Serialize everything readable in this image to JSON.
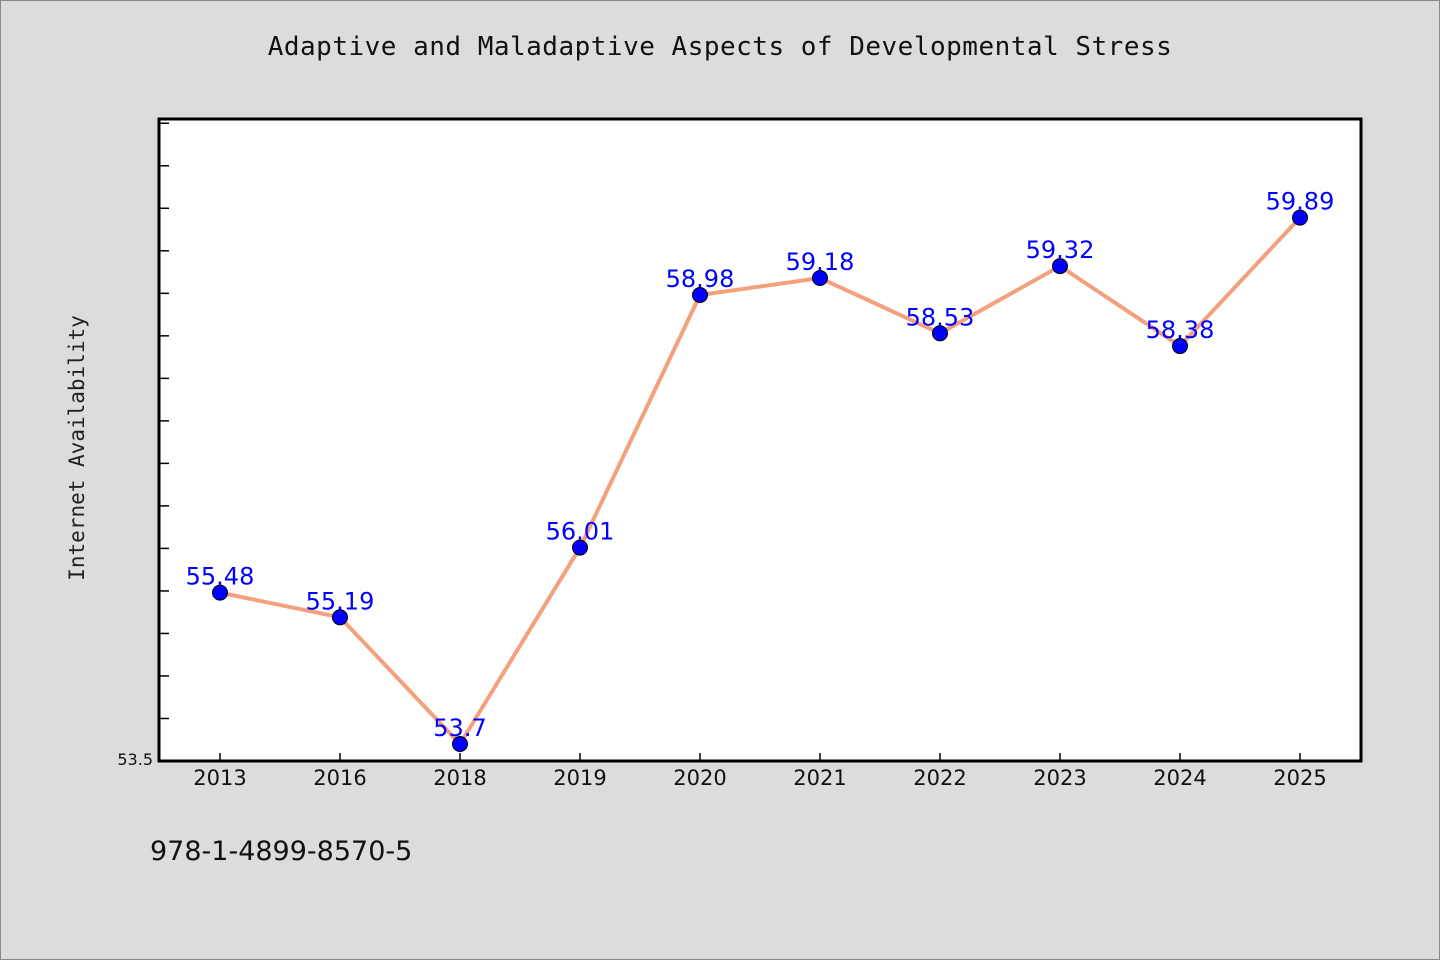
{
  "chart_data": {
    "type": "line",
    "title": "Adaptive and Maladaptive Aspects of Developmental Stress",
    "xlabel": "",
    "ylabel": "Internet Availability",
    "categories": [
      "2013",
      "2016",
      "2018",
      "2019",
      "2020",
      "2021",
      "2022",
      "2023",
      "2024",
      "2025"
    ],
    "series": [
      {
        "values": [
          55.48,
          55.19,
          53.7,
          56.01,
          58.98,
          59.18,
          58.53,
          59.32,
          58.38,
          59.89
        ],
        "data_labels": [
          "55.48",
          "55.19",
          "53.7",
          "56.01",
          "58.98",
          "59.18",
          "58.53",
          "59.32",
          "58.38",
          "59.89"
        ],
        "line_color": "#f4a07e",
        "marker_color": "#0000ff"
      }
    ],
    "ylim": [
      53.5,
      61.05
    ],
    "y_tick_label": "53.5",
    "grid": false,
    "legend": "none"
  },
  "footer": {
    "id_text": "978-1-4899-8570-5"
  },
  "colors": {
    "background": "#dcdcdc",
    "plot_background": "#ffffff",
    "axis": "#000000"
  }
}
